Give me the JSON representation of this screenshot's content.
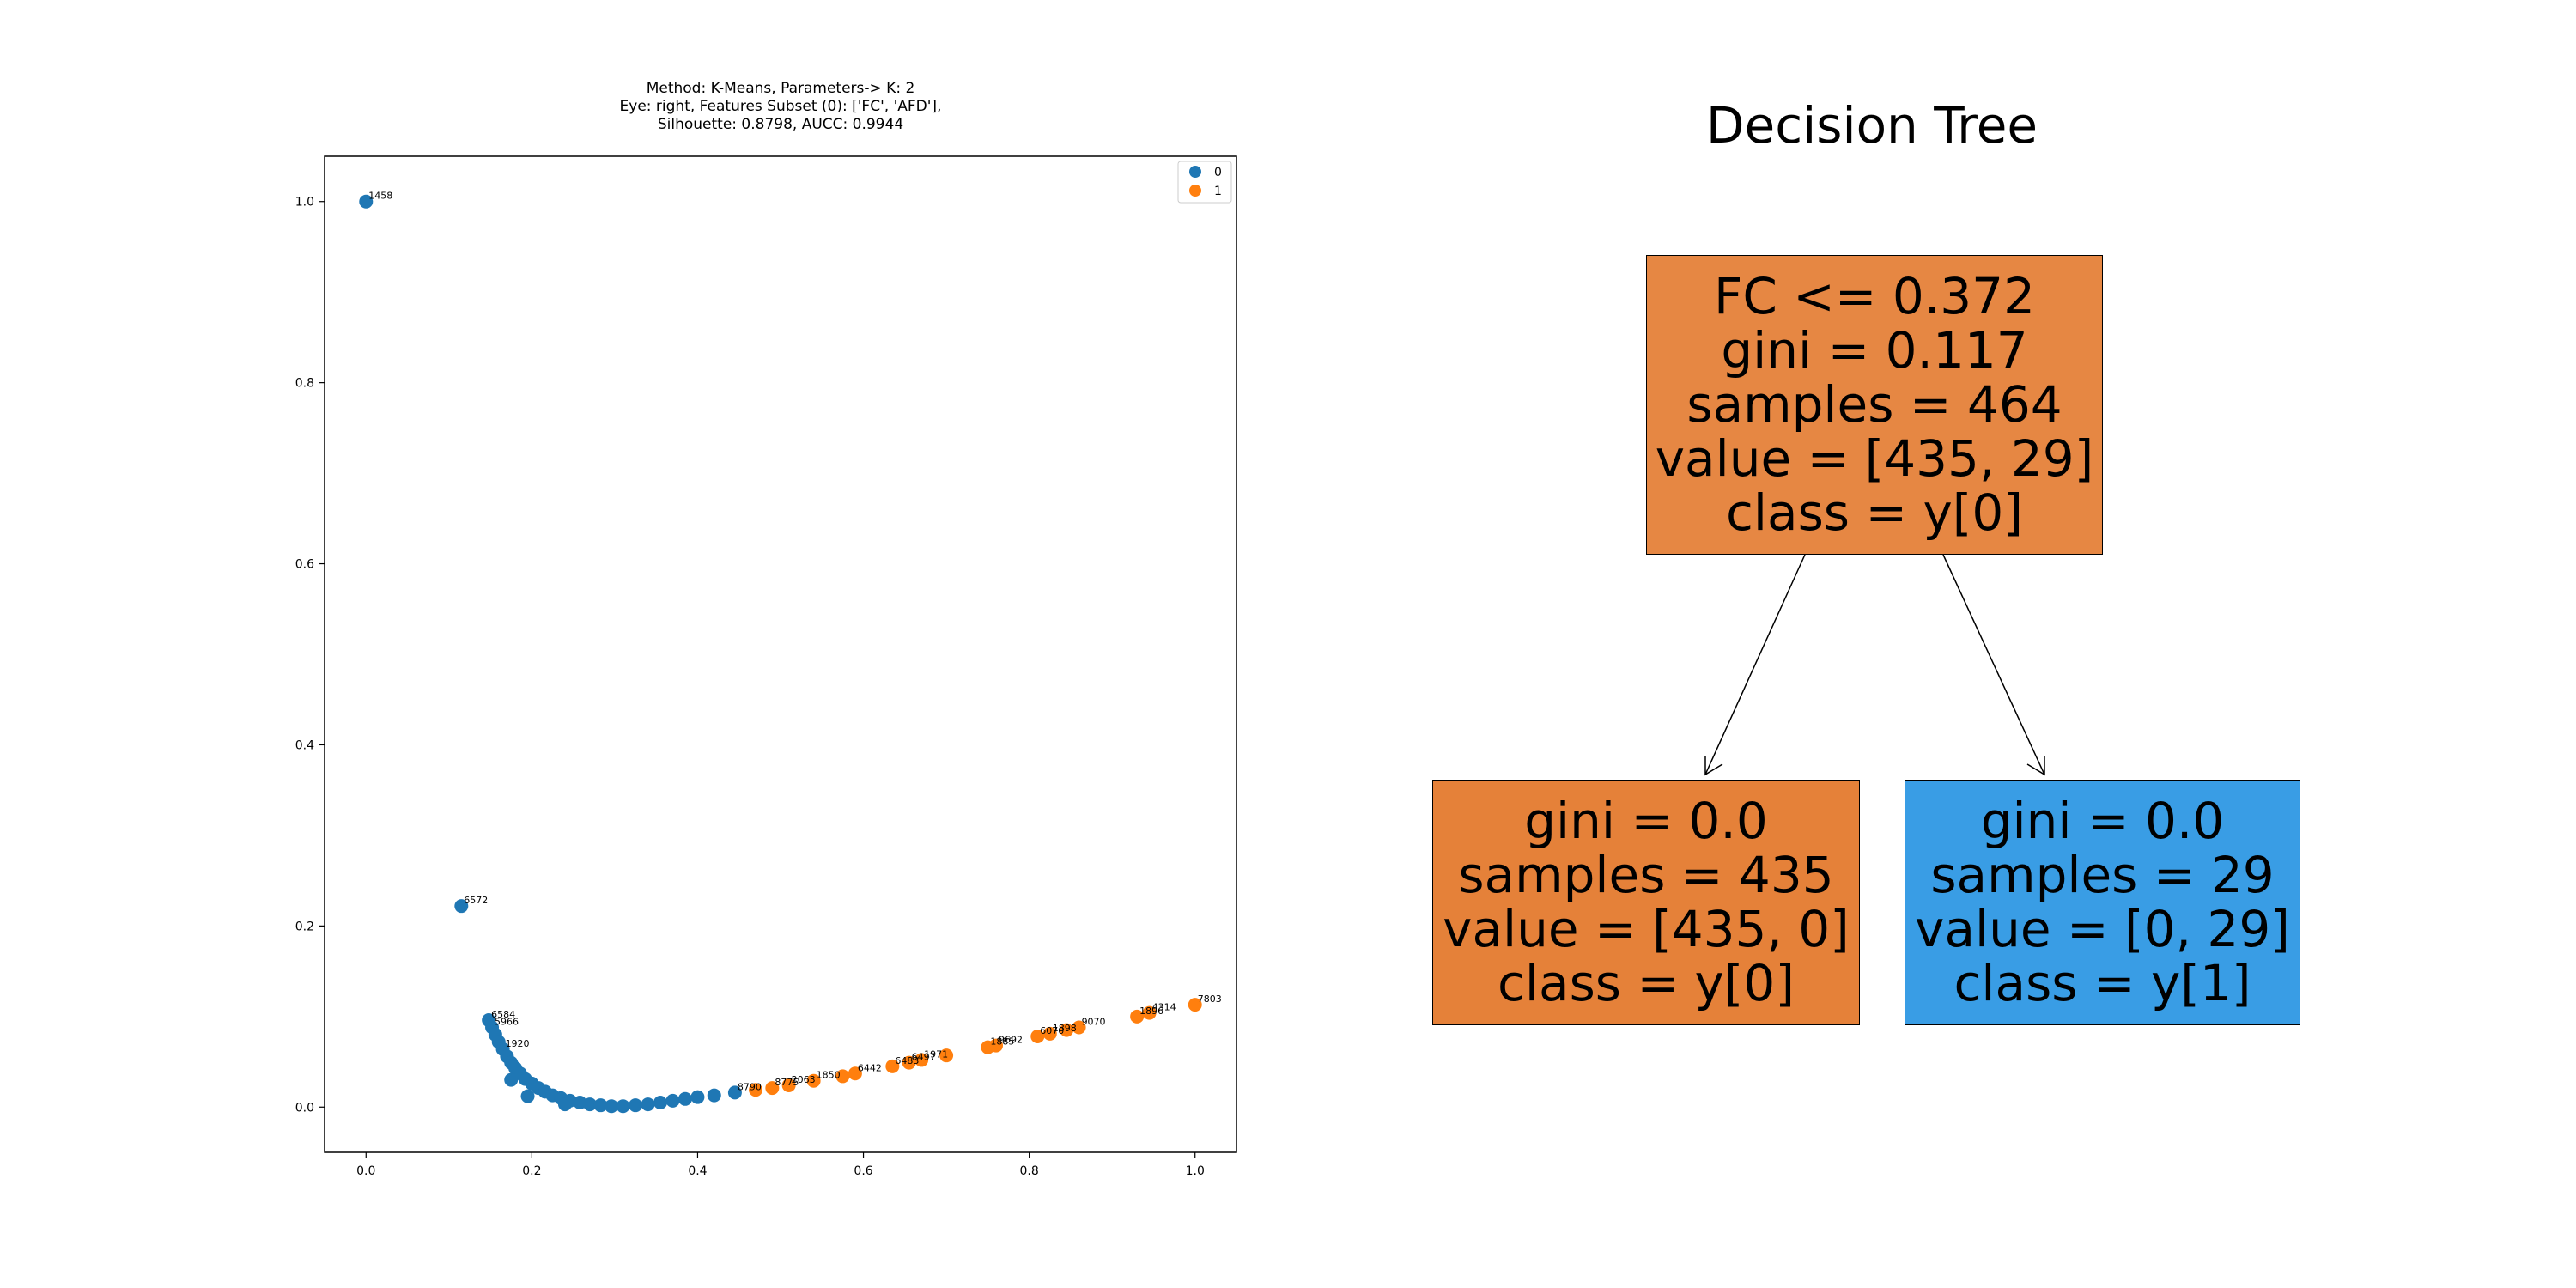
{
  "chart_data": [
    {
      "type": "scatter",
      "title": "Method: K-Means, Parameters-> K: 2\nEye: right, Features Subset (0): ['FC', 'AFD'],\nSilhouette: 0.8798, AUCC: 0.9944",
      "xlabel": "",
      "ylabel": "",
      "xlim": [
        -0.05,
        1.05
      ],
      "ylim": [
        -0.05,
        1.05
      ],
      "xticks": [
        "0.0",
        "0.2",
        "0.4",
        "0.6",
        "0.8",
        "1.0"
      ],
      "yticks": [
        "0.0",
        "0.2",
        "0.4",
        "0.6",
        "0.8",
        "1.0"
      ],
      "grid": false,
      "legend_position": "top-right",
      "series": [
        {
          "name": "0",
          "color": "#1f77b4",
          "points": [
            {
              "x": 0.0,
              "y": 1.0,
              "label": "1458"
            },
            {
              "x": 0.115,
              "y": 0.222,
              "label": "6572"
            },
            {
              "x": 0.148,
              "y": 0.096,
              "label": "6584"
            },
            {
              "x": 0.152,
              "y": 0.088,
              "label": "5966"
            },
            {
              "x": 0.156,
              "y": 0.08,
              "label": ""
            },
            {
              "x": 0.16,
              "y": 0.072,
              "label": ""
            },
            {
              "x": 0.165,
              "y": 0.064,
              "label": "1920"
            },
            {
              "x": 0.17,
              "y": 0.056,
              "label": ""
            },
            {
              "x": 0.175,
              "y": 0.049,
              "label": ""
            },
            {
              "x": 0.18,
              "y": 0.043,
              "label": ""
            },
            {
              "x": 0.186,
              "y": 0.037,
              "label": ""
            },
            {
              "x": 0.192,
              "y": 0.031,
              "label": ""
            },
            {
              "x": 0.2,
              "y": 0.026,
              "label": ""
            },
            {
              "x": 0.208,
              "y": 0.021,
              "label": ""
            },
            {
              "x": 0.216,
              "y": 0.017,
              "label": ""
            },
            {
              "x": 0.225,
              "y": 0.013,
              "label": ""
            },
            {
              "x": 0.235,
              "y": 0.01,
              "label": ""
            },
            {
              "x": 0.246,
              "y": 0.007,
              "label": ""
            },
            {
              "x": 0.258,
              "y": 0.005,
              "label": ""
            },
            {
              "x": 0.27,
              "y": 0.003,
              "label": ""
            },
            {
              "x": 0.283,
              "y": 0.002,
              "label": ""
            },
            {
              "x": 0.296,
              "y": 0.001,
              "label": ""
            },
            {
              "x": 0.31,
              "y": 0.001,
              "label": ""
            },
            {
              "x": 0.325,
              "y": 0.002,
              "label": ""
            },
            {
              "x": 0.34,
              "y": 0.003,
              "label": ""
            },
            {
              "x": 0.355,
              "y": 0.005,
              "label": ""
            },
            {
              "x": 0.37,
              "y": 0.007,
              "label": ""
            },
            {
              "x": 0.385,
              "y": 0.009,
              "label": ""
            },
            {
              "x": 0.4,
              "y": 0.011,
              "label": ""
            },
            {
              "x": 0.42,
              "y": 0.013,
              "label": ""
            },
            {
              "x": 0.445,
              "y": 0.016,
              "label": "8790"
            },
            {
              "x": 0.195,
              "y": 0.012,
              "label": ""
            },
            {
              "x": 0.24,
              "y": 0.003,
              "label": ""
            },
            {
              "x": 0.175,
              "y": 0.03,
              "label": ""
            }
          ]
        },
        {
          "name": "1",
          "color": "#ff7f0e",
          "points": [
            {
              "x": 0.47,
              "y": 0.019,
              "label": ""
            },
            {
              "x": 0.49,
              "y": 0.021,
              "label": "8775"
            },
            {
              "x": 0.51,
              "y": 0.024,
              "label": "2063"
            },
            {
              "x": 0.54,
              "y": 0.029,
              "label": "1850"
            },
            {
              "x": 0.575,
              "y": 0.034,
              "label": ""
            },
            {
              "x": 0.59,
              "y": 0.037,
              "label": "6442"
            },
            {
              "x": 0.635,
              "y": 0.045,
              "label": "6483"
            },
            {
              "x": 0.655,
              "y": 0.049,
              "label": "6497"
            },
            {
              "x": 0.67,
              "y": 0.052,
              "label": "1971"
            },
            {
              "x": 0.7,
              "y": 0.057,
              "label": ""
            },
            {
              "x": 0.75,
              "y": 0.066,
              "label": "1885"
            },
            {
              "x": 0.76,
              "y": 0.068,
              "label": "9692"
            },
            {
              "x": 0.81,
              "y": 0.078,
              "label": "6070"
            },
            {
              "x": 0.825,
              "y": 0.081,
              "label": "1898"
            },
            {
              "x": 0.845,
              "y": 0.085,
              "label": ""
            },
            {
              "x": 0.86,
              "y": 0.088,
              "label": "9070"
            },
            {
              "x": 0.93,
              "y": 0.1,
              "label": "1896"
            },
            {
              "x": 0.945,
              "y": 0.104,
              "label": "4314"
            },
            {
              "x": 1.0,
              "y": 0.113,
              "label": "7803"
            }
          ]
        }
      ]
    }
  ],
  "tree": {
    "title": "Decision Tree",
    "root": {
      "line1": "FC <= 0.372",
      "line2": "gini = 0.117",
      "line3": "samples = 464",
      "line4": "value = [435, 29]",
      "line5": "class = y[0]",
      "fill": "#e68743"
    },
    "left": {
      "line1": "gini = 0.0",
      "line2": "samples = 435",
      "line3": "value = [435, 0]",
      "line4": "class = y[0]",
      "fill": "#e58139"
    },
    "right": {
      "line1": "gini = 0.0",
      "line2": "samples = 29",
      "line3": "value = [0, 29]",
      "line4": "class = y[1]",
      "fill": "#399de5"
    }
  }
}
